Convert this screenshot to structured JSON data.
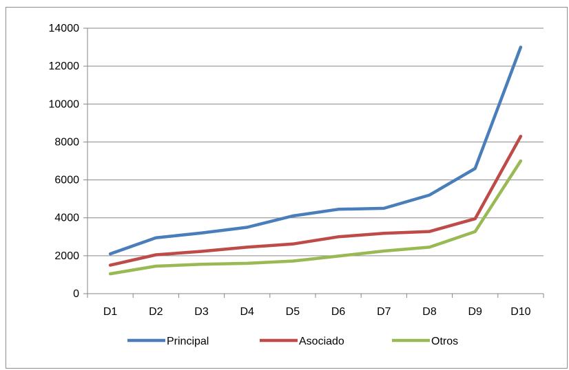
{
  "chart_data": {
    "type": "line",
    "title": "",
    "xlabel": "",
    "ylabel": "",
    "categories": [
      "D1",
      "D2",
      "D3",
      "D4",
      "D5",
      "D6",
      "D7",
      "D8",
      "D9",
      "D10"
    ],
    "ylim": [
      0,
      14000
    ],
    "yticks": [
      0,
      2000,
      4000,
      6000,
      8000,
      10000,
      12000,
      14000
    ],
    "grid": true,
    "legend_position": "bottom",
    "series": [
      {
        "name": "Principal",
        "color": "#4a7ebb",
        "values": [
          2100,
          2950,
          3200,
          3500,
          4100,
          4450,
          4500,
          5200,
          6600,
          13000
        ]
      },
      {
        "name": "Asociado",
        "color": "#be4b48",
        "values": [
          1500,
          2050,
          2230,
          2450,
          2620,
          3000,
          3180,
          3280,
          3950,
          8300
        ]
      },
      {
        "name": "Otros",
        "color": "#98b954",
        "values": [
          1050,
          1450,
          1550,
          1600,
          1720,
          1980,
          2250,
          2450,
          3270,
          7000
        ]
      }
    ]
  }
}
